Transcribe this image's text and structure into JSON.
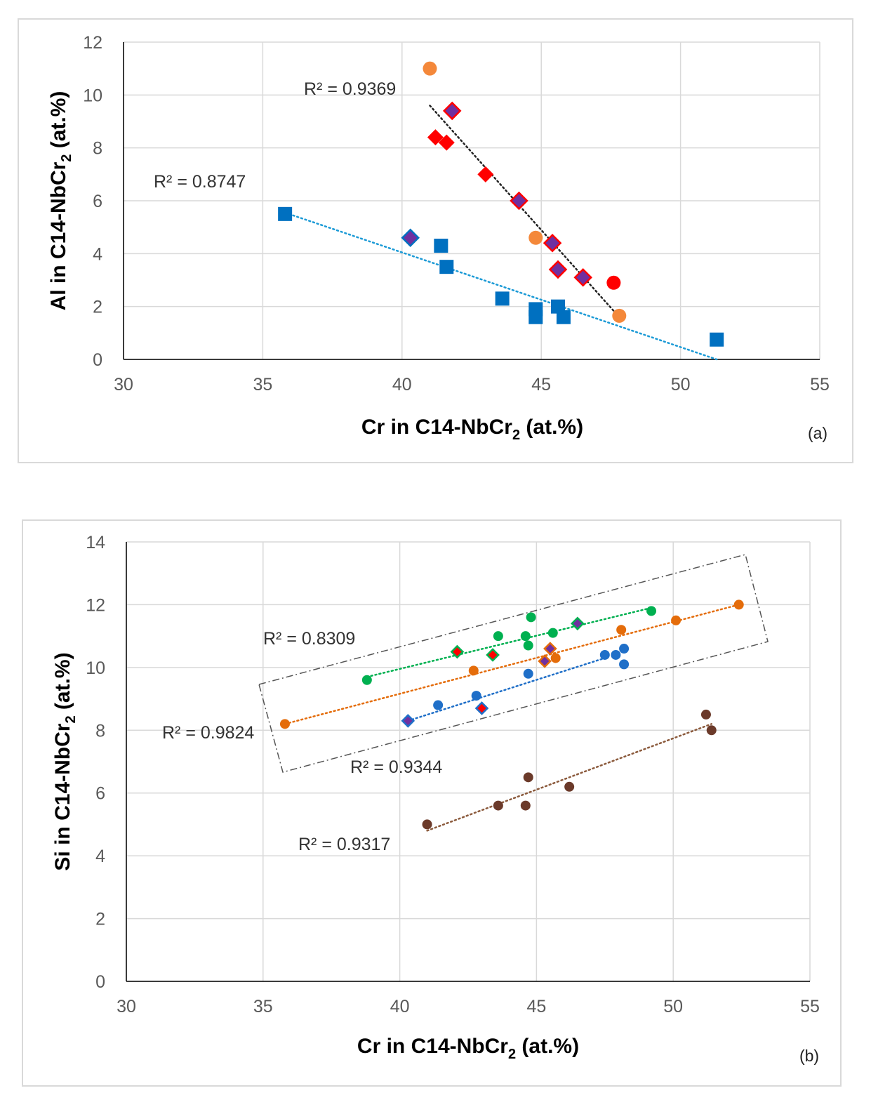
{
  "chart_data": [
    {
      "type": "scatter",
      "panel_label": "(a)",
      "xlabel_main": "Cr in C14-NbCr",
      "xlabel_sub": "2",
      "xlabel_tail": " (at.%)",
      "ylabel_main": "Al in C14-NbCr",
      "ylabel_sub": "2",
      "ylabel_tail": " (at.%)",
      "xlim": [
        30,
        55
      ],
      "ylim": [
        0,
        12
      ],
      "x_ticks": [
        "30",
        "35",
        "40",
        "45",
        "50",
        "55"
      ],
      "y_ticks": [
        "0",
        "2",
        "4",
        "6",
        "8",
        "10",
        "12"
      ],
      "grid": true,
      "series": [
        {
          "marker": "square",
          "color": "#0070c0",
          "points": [
            [
              35.8,
              5.5
            ],
            [
              41.4,
              4.3
            ],
            [
              41.6,
              3.5
            ],
            [
              43.6,
              2.3
            ],
            [
              44.8,
              1.9
            ],
            [
              44.8,
              1.6
            ],
            [
              45.6,
              2.0
            ],
            [
              45.8,
              1.6
            ],
            [
              51.3,
              0.75
            ]
          ]
        },
        {
          "marker": "circle",
          "color": "#f4883a",
          "points": [
            [
              41.0,
              11.0
            ],
            [
              44.8,
              4.6
            ],
            [
              47.8,
              1.65
            ]
          ]
        },
        {
          "marker": "circle",
          "color": "#ff0000",
          "points": [
            [
              47.6,
              2.9
            ]
          ]
        },
        {
          "marker": "diamond",
          "color": "#ff0000",
          "points": [
            [
              41.2,
              8.4
            ],
            [
              41.6,
              8.2
            ],
            [
              43.0,
              7.0
            ]
          ]
        },
        {
          "marker": "diamond",
          "color": "#7030a0",
          "stroke": "#ff0000",
          "points": [
            [
              41.8,
              9.4
            ],
            [
              44.2,
              6.0
            ],
            [
              45.4,
              4.4
            ],
            [
              45.6,
              3.4
            ],
            [
              46.5,
              3.1
            ]
          ]
        },
        {
          "marker": "diamond",
          "color": "#7030a0",
          "stroke": "#0070c0",
          "points": [
            [
              40.3,
              4.6
            ]
          ]
        }
      ],
      "trendlines": [
        {
          "color": "#1b9ad6",
          "x": [
            35.8,
            51.3
          ],
          "y": [
            5.55,
            0.0
          ],
          "r2": "R² = 0.8747"
        },
        {
          "color": "#222222",
          "x": [
            41.0,
            47.8
          ],
          "y": [
            9.6,
            1.6
          ],
          "r2": "R² = 0.9369"
        }
      ]
    },
    {
      "type": "scatter",
      "panel_label": "(b)",
      "xlabel_main": "Cr in C14-NbCr",
      "xlabel_sub": "2",
      "xlabel_tail": " (at.%)",
      "ylabel_main": "Si in C14-NbCr",
      "ylabel_sub": "2",
      "ylabel_tail": " (at.%)",
      "xlim": [
        30,
        55
      ],
      "ylim": [
        0,
        14
      ],
      "x_ticks": [
        "30",
        "35",
        "40",
        "45",
        "50",
        "55"
      ],
      "y_ticks": [
        "0",
        "2",
        "4",
        "6",
        "8",
        "10",
        "12",
        "14"
      ],
      "grid": true,
      "series": [
        {
          "marker": "circle",
          "color": "#00b050",
          "points": [
            [
              38.8,
              9.6
            ],
            [
              43.6,
              11.0
            ],
            [
              44.6,
              11.0
            ],
            [
              44.7,
              10.7
            ],
            [
              44.8,
              11.6
            ],
            [
              45.6,
              11.1
            ],
            [
              49.2,
              11.8
            ]
          ]
        },
        {
          "marker": "circle",
          "color": "#e46c0a",
          "points": [
            [
              35.8,
              8.2
            ],
            [
              42.7,
              9.9
            ],
            [
              45.7,
              10.3
            ],
            [
              48.1,
              11.2
            ],
            [
              50.1,
              11.5
            ],
            [
              52.4,
              12.0
            ]
          ]
        },
        {
          "marker": "circle",
          "color": "#1f6fc8",
          "points": [
            [
              41.4,
              8.8
            ],
            [
              42.8,
              9.1
            ],
            [
              44.7,
              9.8
            ],
            [
              47.5,
              10.4
            ],
            [
              47.9,
              10.4
            ],
            [
              48.2,
              10.6
            ],
            [
              48.2,
              10.1
            ]
          ]
        },
        {
          "marker": "circle",
          "color": "#6b3a2a",
          "points": [
            [
              41.0,
              5.0
            ],
            [
              43.6,
              5.6
            ],
            [
              44.6,
              5.6
            ],
            [
              44.7,
              6.5
            ],
            [
              46.2,
              6.2
            ],
            [
              51.2,
              8.5
            ],
            [
              51.4,
              8.0
            ]
          ]
        },
        {
          "marker": "diamond",
          "color": "#ff0000",
          "stroke": "#00b050",
          "points": [
            [
              42.1,
              10.5
            ],
            [
              43.4,
              10.4
            ]
          ]
        },
        {
          "marker": "diamond",
          "color": "#ff0000",
          "stroke": "#1f6fc8",
          "points": [
            [
              43.0,
              8.7
            ]
          ]
        },
        {
          "marker": "diamond",
          "color": "#7030a0",
          "stroke": "#00b050",
          "points": [
            [
              46.5,
              11.4
            ]
          ]
        },
        {
          "marker": "diamond",
          "color": "#7030a0",
          "stroke": "#e46c0a",
          "points": [
            [
              45.5,
              10.6
            ],
            [
              45.3,
              10.2
            ]
          ]
        },
        {
          "marker": "diamond",
          "color": "#7030a0",
          "stroke": "#1f6fc8",
          "points": [
            [
              40.3,
              8.3
            ]
          ]
        }
      ],
      "trendlines": [
        {
          "color": "#00b050",
          "x": [
            38.8,
            49.2
          ],
          "y": [
            9.7,
            11.9
          ],
          "r2": "R² = 0.8309"
        },
        {
          "color": "#e46c0a",
          "x": [
            35.8,
            52.4
          ],
          "y": [
            8.2,
            12.0
          ],
          "r2": "R² = 0.9824"
        },
        {
          "color": "#1f6fc8",
          "x": [
            40.3,
            47.5
          ],
          "y": [
            8.3,
            10.3
          ],
          "r2": "R² = 0.9344"
        },
        {
          "color": "#8b5a3c",
          "x": [
            41.0,
            51.4
          ],
          "y": [
            4.8,
            8.2
          ],
          "r2": "R² = 0.9317"
        }
      ]
    }
  ]
}
